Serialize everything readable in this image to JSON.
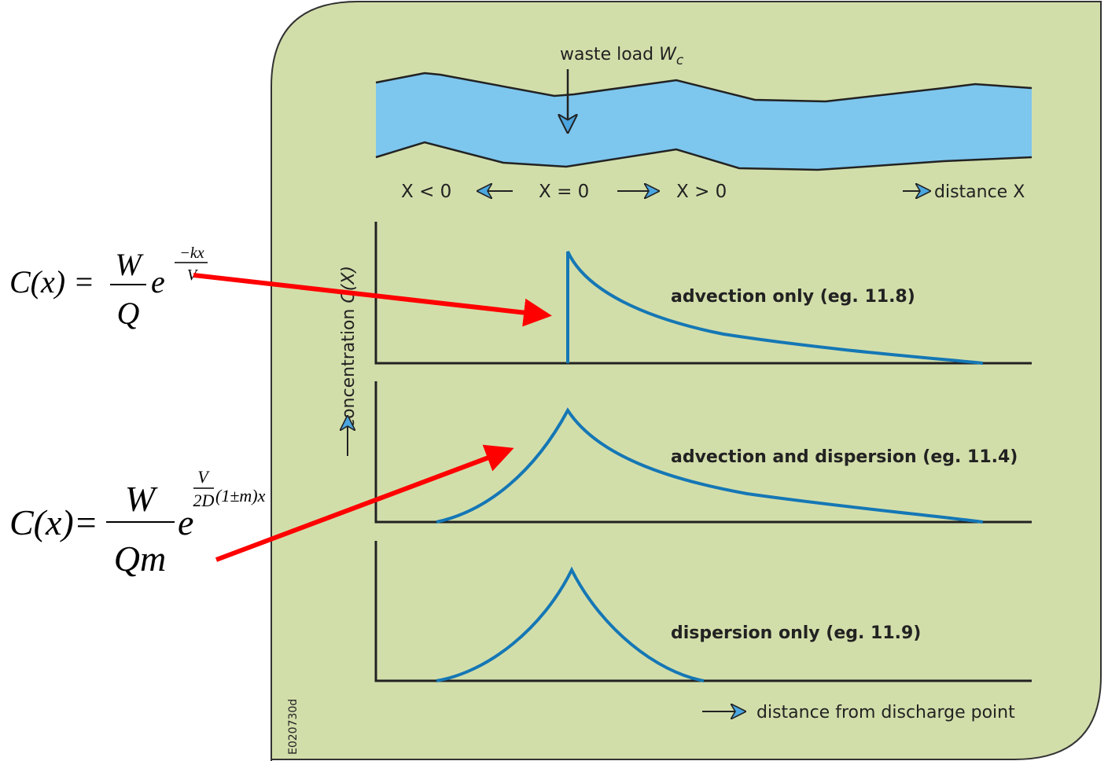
{
  "waste_load": {
    "text": "waste load",
    "symbol": "W",
    "subscript": "c"
  },
  "positions": {
    "left": "X < 0",
    "origin": "X = 0",
    "right": "X > 0",
    "distance": "distance X"
  },
  "y_axis": {
    "text": "concentration",
    "symbol": "C(X)"
  },
  "panels": [
    {
      "label": "advection only (eg. 11.8)"
    },
    {
      "label": "advection and dispersion (eg. 11.4)"
    },
    {
      "label": "dispersion only (eg. 11.9)"
    }
  ],
  "x_axis": {
    "text": "distance from discharge point"
  },
  "code": "E020730d",
  "equations": [
    {
      "lhs": "C(x) =",
      "numerator": "W",
      "denominator": "Q",
      "base": "e",
      "exp_numerator": "−kx",
      "exp_denominator": "V"
    },
    {
      "lhs": "C(x)=",
      "numerator": "W",
      "denominator": "Qm",
      "base": "e",
      "exp_numerator": "V",
      "exp_denominator": "2D",
      "exp_rest": "(1±m)x"
    }
  ]
}
